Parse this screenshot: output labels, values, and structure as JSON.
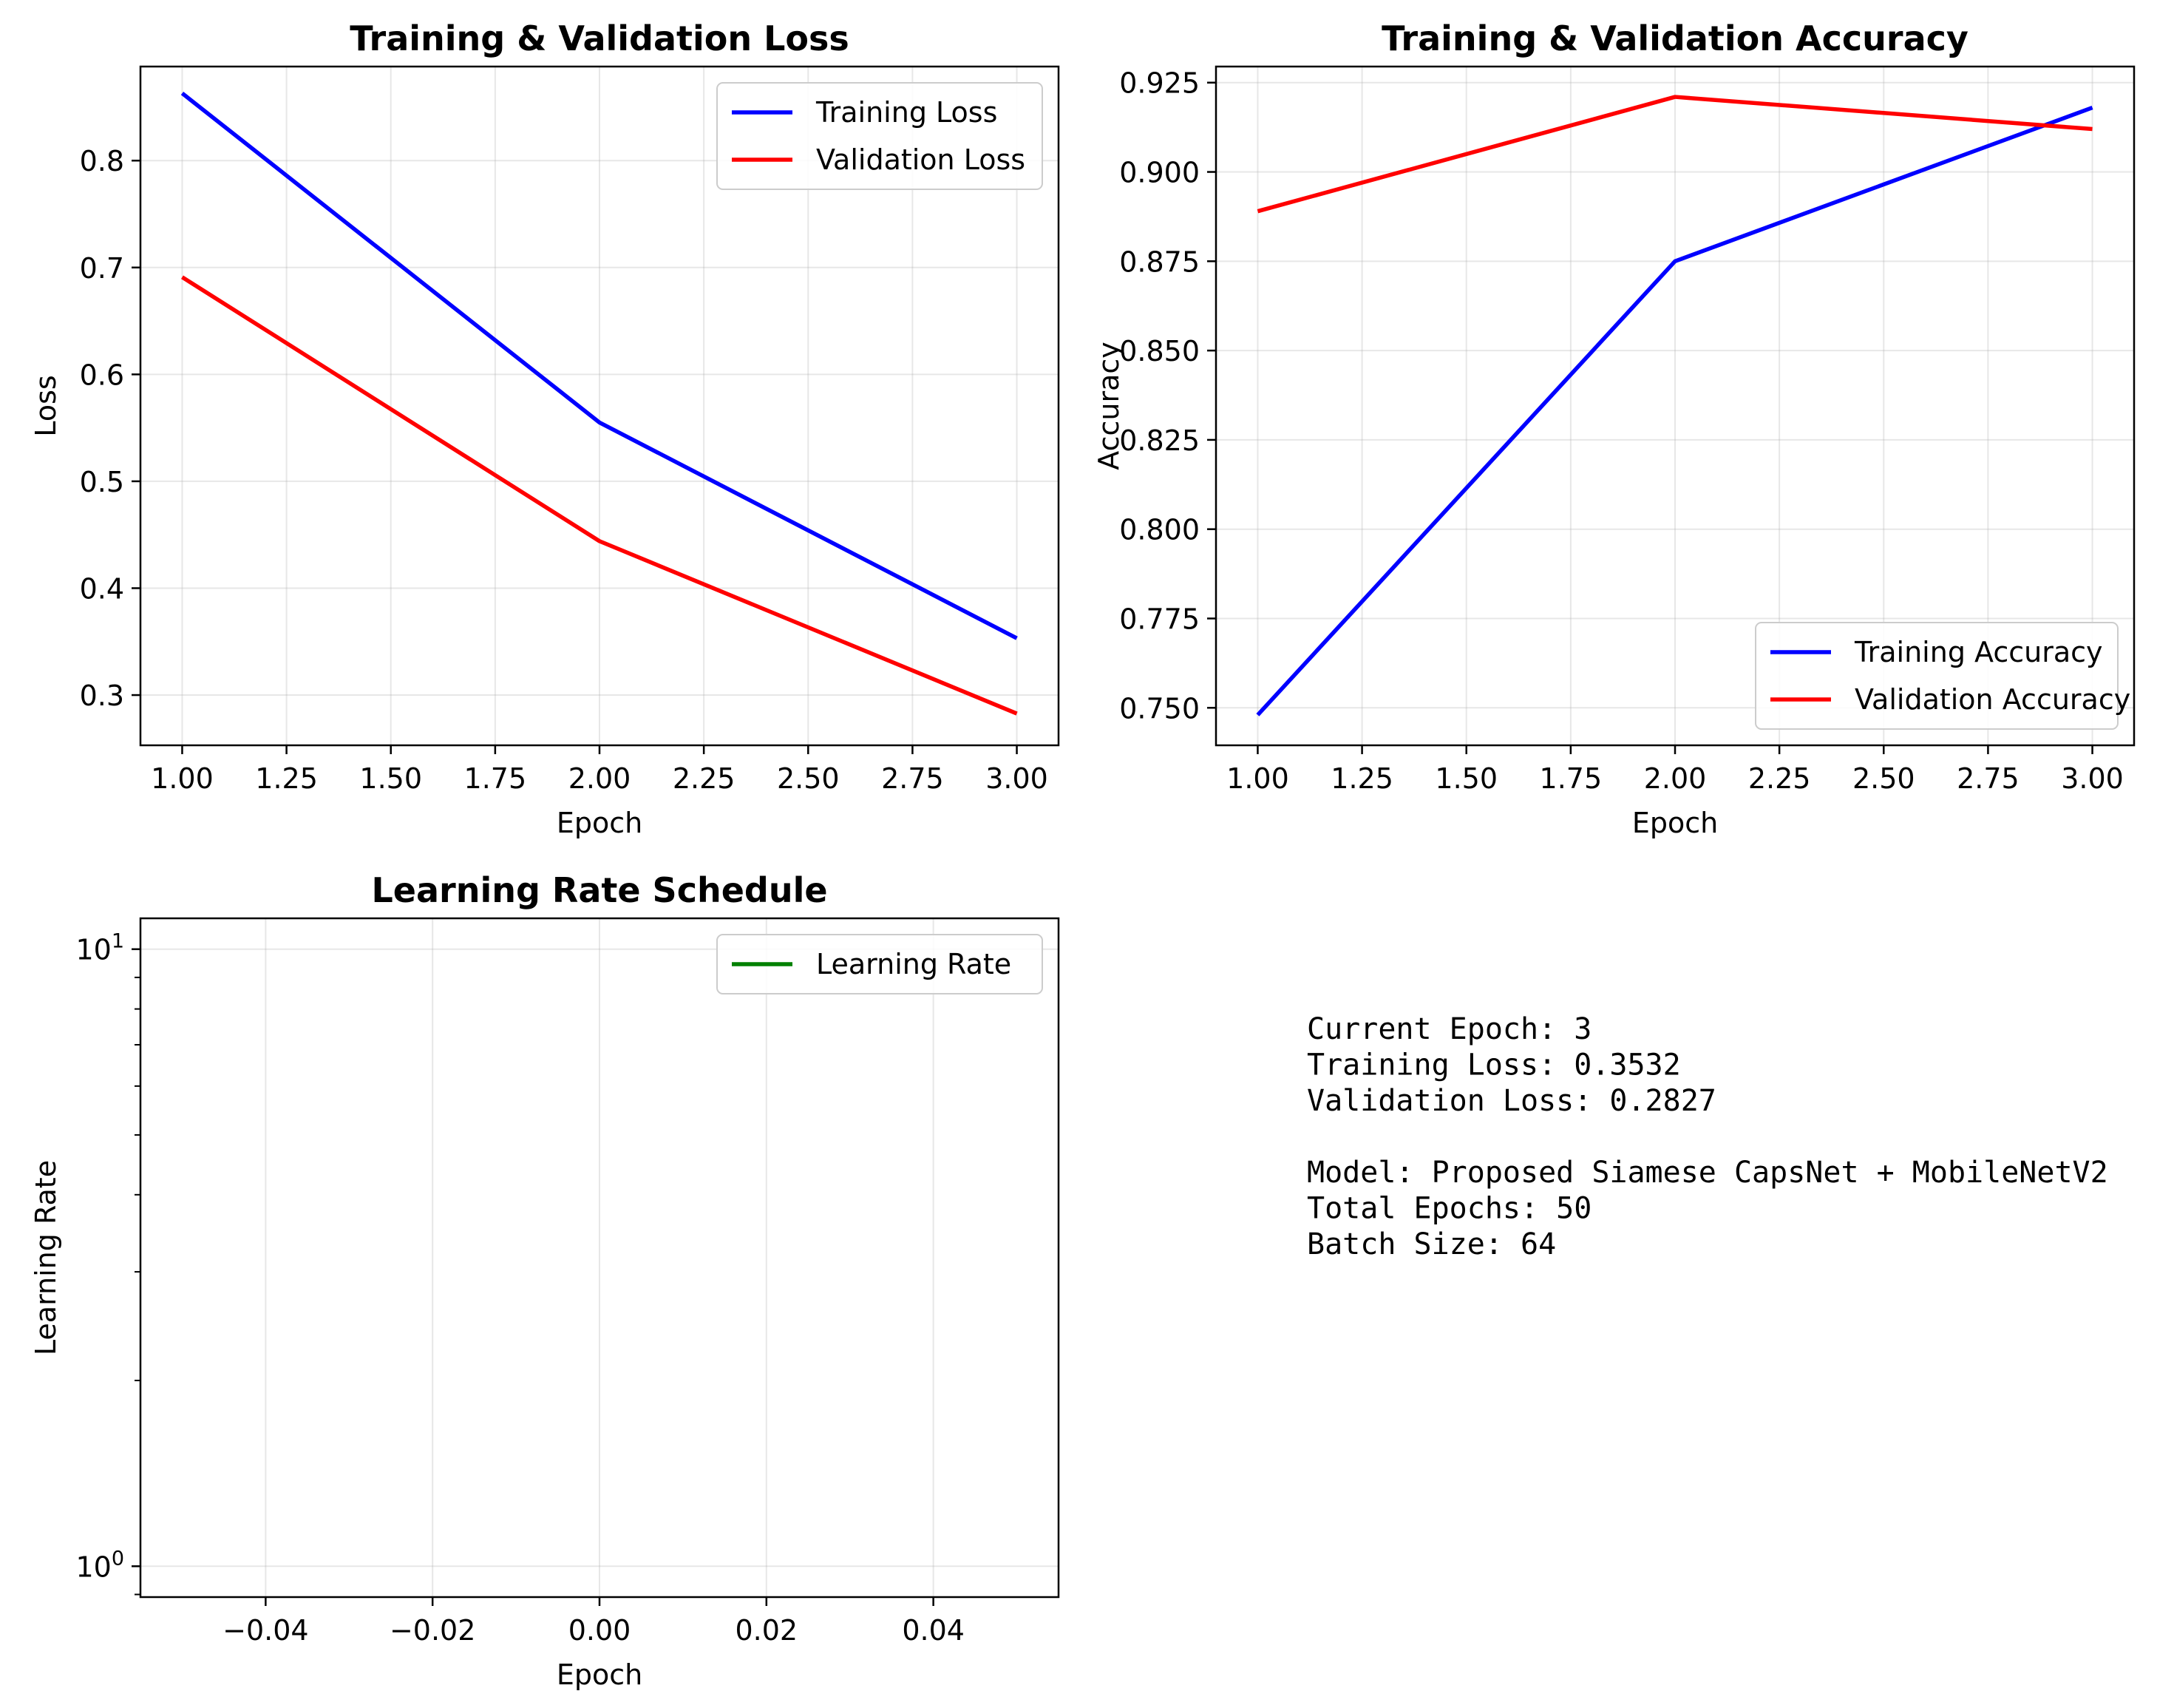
{
  "chart_data": [
    {
      "type": "line",
      "title": "Training & Validation Loss",
      "xlabel": "Epoch",
      "ylabel": "Loss",
      "xlim": [
        0.9,
        3.1
      ],
      "ylim": [
        0.253,
        0.888
      ],
      "xticks": [
        1.0,
        1.25,
        1.5,
        1.75,
        2.0,
        2.25,
        2.5,
        2.75,
        3.0
      ],
      "xtick_labels": [
        "1.00",
        "1.25",
        "1.50",
        "1.75",
        "2.00",
        "2.25",
        "2.50",
        "2.75",
        "3.00"
      ],
      "yticks": [
        0.3,
        0.4,
        0.5,
        0.6,
        0.7,
        0.8
      ],
      "ytick_labels": [
        "0.3",
        "0.4",
        "0.5",
        "0.6",
        "0.7",
        "0.8"
      ],
      "grid": true,
      "legend_position": "upper right",
      "x": [
        1,
        2,
        3
      ],
      "series": [
        {
          "name": "Training Loss",
          "color": "#0000ff",
          "values": [
            0.863,
            0.555,
            0.3532
          ]
        },
        {
          "name": "Validation Loss",
          "color": "#ff0000",
          "values": [
            0.691,
            0.444,
            0.2827
          ]
        }
      ]
    },
    {
      "type": "line",
      "title": "Training & Validation Accuracy",
      "xlabel": "Epoch",
      "ylabel": "Accuracy",
      "xlim": [
        0.9,
        3.1
      ],
      "ylim": [
        0.7395,
        0.9295
      ],
      "xticks": [
        1.0,
        1.25,
        1.5,
        1.75,
        2.0,
        2.25,
        2.5,
        2.75,
        3.0
      ],
      "xtick_labels": [
        "1.00",
        "1.25",
        "1.50",
        "1.75",
        "2.00",
        "2.25",
        "2.50",
        "2.75",
        "3.00"
      ],
      "yticks": [
        0.75,
        0.775,
        0.8,
        0.825,
        0.85,
        0.875,
        0.9,
        0.925
      ],
      "ytick_labels": [
        "0.750",
        "0.775",
        "0.800",
        "0.825",
        "0.850",
        "0.875",
        "0.900",
        "0.925"
      ],
      "grid": true,
      "legend_position": "lower right",
      "x": [
        1,
        2,
        3
      ],
      "series": [
        {
          "name": "Training Accuracy",
          "color": "#0000ff",
          "values": [
            0.748,
            0.875,
            0.918
          ]
        },
        {
          "name": "Validation Accuracy",
          "color": "#ff0000",
          "values": [
            0.889,
            0.921,
            0.912
          ]
        }
      ]
    },
    {
      "type": "line",
      "title": "Learning Rate Schedule",
      "xlabel": "Epoch",
      "ylabel": "Learning Rate",
      "xlim": [
        -0.055,
        0.055
      ],
      "ylim_log10": [
        -0.05,
        1.05
      ],
      "yscale": "log",
      "xticks": [
        -0.04,
        -0.02,
        0.0,
        0.02,
        0.04
      ],
      "xtick_labels": [
        "−0.04",
        "−0.02",
        "0.00",
        "0.02",
        "0.04"
      ],
      "yticks": [
        1,
        10
      ],
      "ytick_labels": [
        {
          "base": "10",
          "exp": "0"
        },
        {
          "base": "10",
          "exp": "1"
        }
      ],
      "grid": true,
      "legend_position": "upper right",
      "series": [
        {
          "name": "Learning Rate",
          "color": "#008000",
          "values": []
        }
      ]
    }
  ],
  "info_panel": {
    "lines": [
      "Current Epoch: 3",
      "Training Loss: 0.3532",
      "Validation Loss: 0.2827",
      "",
      "Model: Proposed Siamese CapsNet + MobileNetV2",
      "Total Epochs: 50",
      "Batch Size: 64"
    ]
  }
}
